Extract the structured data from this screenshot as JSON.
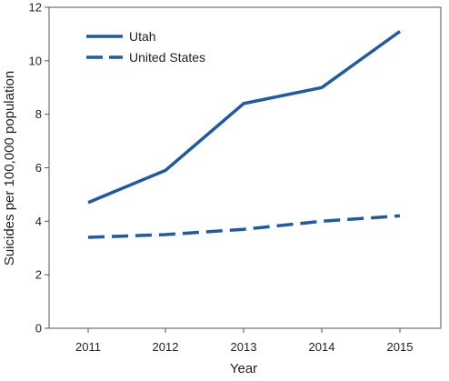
{
  "chart_data": {
    "type": "line",
    "title": "",
    "xlabel": "Year",
    "ylabel": "Suicides per 100,000 population",
    "x": [
      "2011",
      "2012",
      "2013",
      "2014",
      "2015"
    ],
    "ylim": [
      0,
      12
    ],
    "yticks": [
      0,
      2,
      4,
      6,
      8,
      10,
      12
    ],
    "grid": false,
    "legend_position": "top-left",
    "series": [
      {
        "name": "Utah",
        "values": [
          4.7,
          5.9,
          8.4,
          9.0,
          11.1
        ],
        "color": "#1f5aa6",
        "line_style": "solid"
      },
      {
        "name": "United States",
        "values": [
          3.4,
          3.5,
          3.7,
          4.0,
          4.2
        ],
        "color": "#1f5aa6",
        "line_style": "dashed"
      }
    ]
  }
}
